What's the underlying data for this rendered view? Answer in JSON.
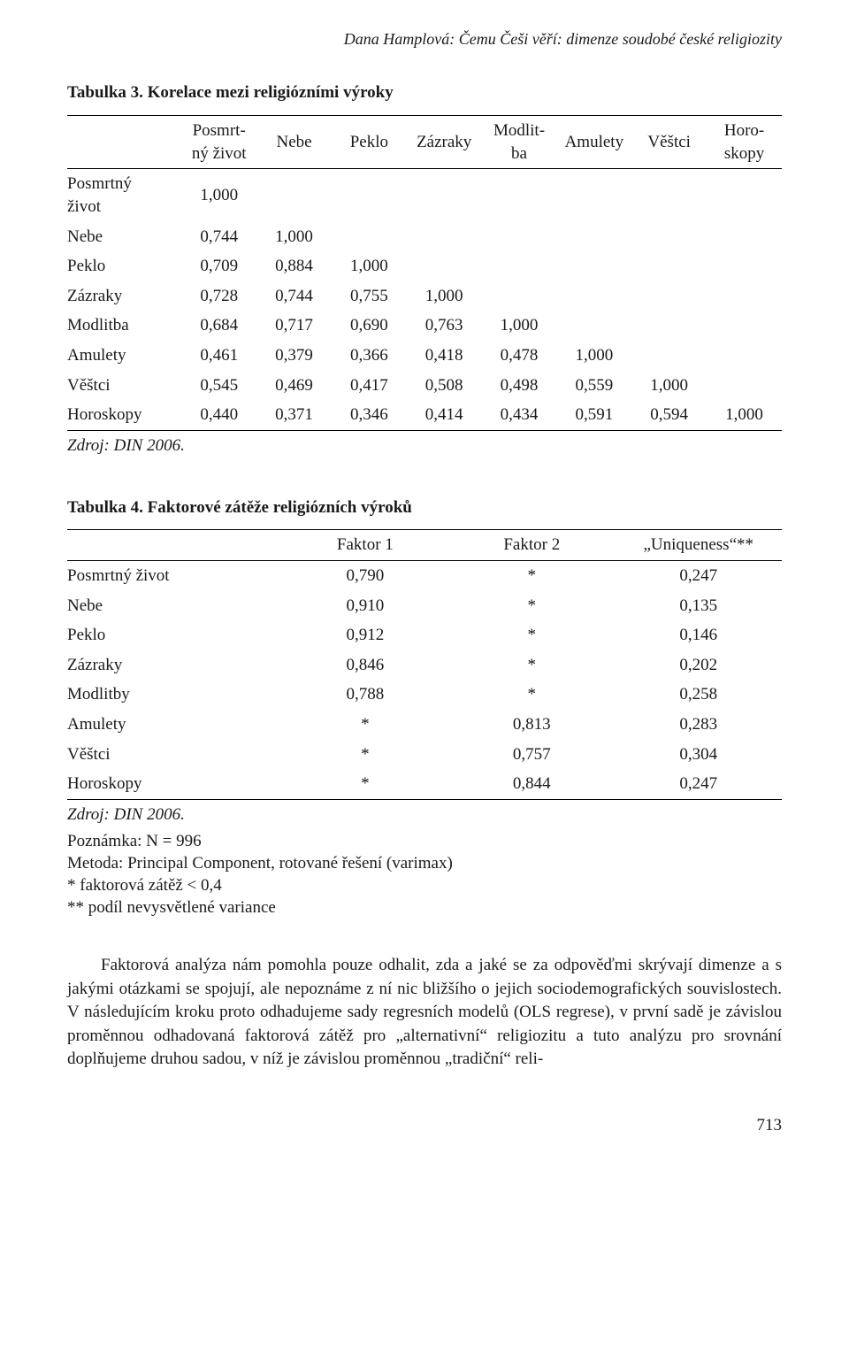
{
  "running_head": "Dana Hamplová: Čemu Češi věří: dimenze soudobé české religiozity",
  "page_number": "713",
  "table3": {
    "title": "Tabulka 3. Korelace mezi religiózními výroky",
    "source": "Zdroj: DIN 2006.",
    "columns": [
      "",
      "Posmrt-\nný život",
      "Nebe",
      "Peklo",
      "Zázraky",
      "Modlit-\nba",
      "Amulety",
      "Věštci",
      "Horo-\nskopy"
    ],
    "rows": [
      {
        "label": "Posmrtný život",
        "values": [
          "1,000",
          "",
          "",
          "",
          "",
          "",
          "",
          ""
        ]
      },
      {
        "label": "Nebe",
        "values": [
          "0,744",
          "1,000",
          "",
          "",
          "",
          "",
          "",
          ""
        ]
      },
      {
        "label": "Peklo",
        "values": [
          "0,709",
          "0,884",
          "1,000",
          "",
          "",
          "",
          "",
          ""
        ]
      },
      {
        "label": "Zázraky",
        "values": [
          "0,728",
          "0,744",
          "0,755",
          "1,000",
          "",
          "",
          "",
          ""
        ]
      },
      {
        "label": "Modlitba",
        "values": [
          "0,684",
          "0,717",
          "0,690",
          "0,763",
          "1,000",
          "",
          "",
          ""
        ]
      },
      {
        "label": "Amulety",
        "values": [
          "0,461",
          "0,379",
          "0,366",
          "0,418",
          "0,478",
          "1,000",
          "",
          ""
        ]
      },
      {
        "label": "Věštci",
        "values": [
          "0,545",
          "0,469",
          "0,417",
          "0,508",
          "0,498",
          "0,559",
          "1,000",
          ""
        ]
      },
      {
        "label": "Horoskopy",
        "values": [
          "0,440",
          "0,371",
          "0,346",
          "0,414",
          "0,434",
          "0,591",
          "0,594",
          "1,000"
        ]
      }
    ],
    "style": {
      "type": "correlation-matrix",
      "border_color": "#000000",
      "rules": "top-and-bottom",
      "font_size_pt": 14,
      "col_align": [
        "left",
        "center",
        "center",
        "center",
        "center",
        "center",
        "center",
        "center",
        "center"
      ]
    }
  },
  "table4": {
    "title": "Tabulka 4. Faktorové zátěže religiózních výroků",
    "source": "Zdroj: DIN 2006.",
    "columns": [
      "",
      "Faktor 1",
      "Faktor 2",
      "„Uniqueness“**"
    ],
    "rows": [
      {
        "label": "Posmrtný život",
        "values": [
          "0,790",
          "*",
          "0,247"
        ]
      },
      {
        "label": "Nebe",
        "values": [
          "0,910",
          "*",
          "0,135"
        ]
      },
      {
        "label": "Peklo",
        "values": [
          "0,912",
          "*",
          "0,146"
        ]
      },
      {
        "label": "Zázraky",
        "values": [
          "0,846",
          "*",
          "0,202"
        ]
      },
      {
        "label": "Modlitby",
        "values": [
          "0,788",
          "*",
          "0,258"
        ]
      },
      {
        "label": "Amulety",
        "values": [
          "*",
          "0,813",
          "0,283"
        ]
      },
      {
        "label": "Věštci",
        "values": [
          "*",
          "0,757",
          "0,304"
        ]
      },
      {
        "label": "Horoskopy",
        "values": [
          "*",
          "0,844",
          "0,247"
        ]
      }
    ],
    "notes": [
      "Poznámka: N = 996",
      "Metoda: Principal Component, rotované řešení (varimax)",
      "* faktorová zátěž < 0,4",
      "** podíl nevysvětlené variance"
    ],
    "style": {
      "type": "table",
      "border_color": "#000000",
      "rules": "top-and-bottom",
      "font_size_pt": 14,
      "col_align": [
        "left",
        "center",
        "center",
        "center"
      ]
    }
  },
  "body_paragraph": "Faktorová analýza nám pomohla pouze odhalit, zda a jaké se za odpověďmi skrývají dimenze a s jakými otázkami se spojují, ale nepoznáme z ní nic bližšího o jejich sociodemografických souvislostech. V následujícím kroku proto odhadujeme sady regresních modelů (OLS regrese), v první sadě je závislou proměnnou odhadovaná faktorová zátěž pro „alternativní“ religiozitu a tuto analýzu pro srovnání doplňujeme druhou sadou, v níž je závislou proměnnou „tradiční“ reli-"
}
